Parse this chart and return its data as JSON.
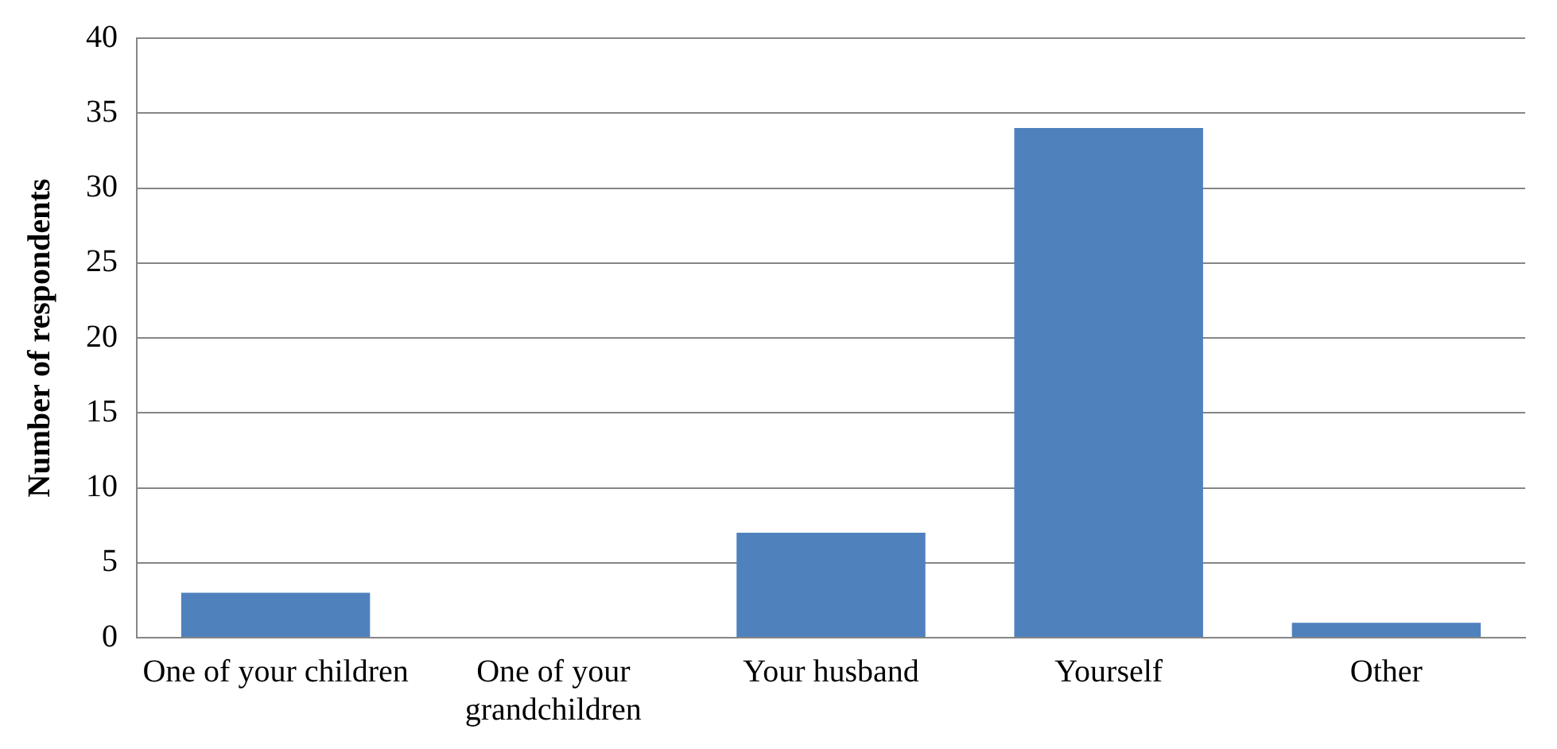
{
  "chart_data": {
    "type": "bar",
    "ylabel": "Number of respondents",
    "categories": [
      "One of your children",
      "One of your grandchildren",
      "Your husband",
      "Yourself",
      "Other"
    ],
    "values": [
      3,
      0,
      7,
      34,
      1
    ],
    "color": "#4f81bd",
    "ylim": [
      0,
      40
    ],
    "yticks": [
      0,
      5,
      10,
      15,
      20,
      25,
      30,
      35,
      40
    ],
    "grid": "y",
    "legend": false
  }
}
